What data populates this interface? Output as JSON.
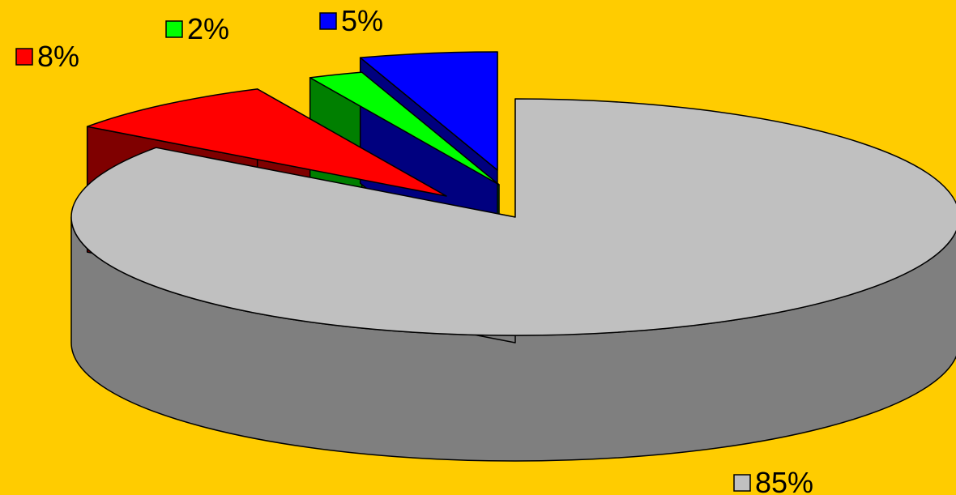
{
  "background_color": "#FFCC00",
  "chart_data": {
    "type": "pie",
    "variant": "3d-exploded",
    "slices": [
      {
        "label": "85%",
        "value": 85,
        "color": "#C0C0C0",
        "side_color": "#7F7F7F",
        "exploded": false
      },
      {
        "label": "8%",
        "value": 8,
        "color": "#FF0000",
        "side_color": "#7F0000",
        "exploded": true
      },
      {
        "label": "2%",
        "value": 2,
        "color": "#00FF00",
        "side_color": "#007F00",
        "exploded": true
      },
      {
        "label": "5%",
        "value": 5,
        "color": "#0000FF",
        "side_color": "#00007F",
        "exploded": true
      }
    ],
    "legend": "none"
  }
}
